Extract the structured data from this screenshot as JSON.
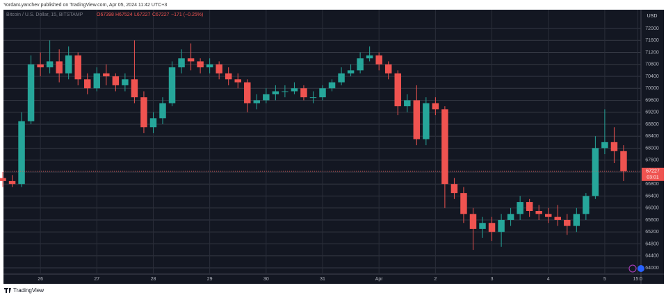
{
  "header": "YordanLyanchev published on TradingView.com, Apr 05, 2024 11:42 UTC+3",
  "footer": "TradingView",
  "chart_data": {
    "type": "candlestick",
    "legend": {
      "symbol": "Bitcoin / U.S. Dollar, 15, BITSTAMP",
      "open": "O67398",
      "high": "H67524",
      "low": "L67227",
      "close": "C67227",
      "change": "−171 (−0.25%)"
    },
    "currency": "USD",
    "last_price": 67227,
    "countdown": "03:01",
    "up_color": "#26a69a",
    "down_color": "#ef5350",
    "grid": true,
    "x": [
      8,
      12,
      16,
      20,
      24,
      28,
      32,
      36,
      40,
      44,
      48,
      52,
      56,
      60,
      64,
      68,
      72,
      76,
      80,
      84,
      88,
      92,
      96,
      100,
      104,
      108,
      112,
      116,
      120,
      124,
      128,
      132,
      136,
      140,
      144,
      148,
      152,
      156,
      160,
      164,
      168,
      172,
      176,
      180,
      184,
      188,
      192,
      196,
      200,
      204,
      208,
      212,
      216,
      220,
      224,
      228,
      232,
      236,
      240,
      244,
      248,
      252,
      256,
      260,
      264,
      268,
      272
    ],
    "open": [
      67000,
      66900,
      66800,
      68900,
      70800,
      70700,
      70900,
      70500,
      71100,
      70300,
      70000,
      70500,
      70400,
      70100,
      70300,
      69700,
      68700,
      69000,
      69500,
      70700,
      71000,
      70900,
      70700,
      70800,
      70500,
      70300,
      70200,
      69500,
      69600,
      69800,
      69900,
      69900,
      70000,
      69700,
      69700,
      70000,
      70200,
      70500,
      70600,
      71000,
      71100,
      70800,
      70500,
      69400,
      69600,
      68300,
      69500,
      69300,
      66800,
      66500,
      65800,
      65300,
      65500,
      65200,
      65600,
      65800,
      66200,
      65900,
      65800,
      65700,
      65600,
      65400,
      65800,
      66400,
      68000,
      68200,
      67900
    ],
    "high": [
      67200,
      67100,
      69200,
      71100,
      71200,
      71600,
      71300,
      71400,
      71200,
      70500,
      70700,
      70800,
      70500,
      70500,
      71600,
      69900,
      69200,
      69700,
      70900,
      71300,
      71500,
      71000,
      71000,
      70900,
      70700,
      70500,
      70300,
      69800,
      70000,
      70100,
      70100,
      70200,
      70100,
      69900,
      70100,
      70300,
      70700,
      70800,
      71200,
      71400,
      71200,
      70900,
      70600,
      69800,
      70100,
      69700,
      69700,
      69400,
      67000,
      66700,
      66000,
      65700,
      65700,
      65800,
      66000,
      66400,
      66300,
      66100,
      66000,
      66100,
      65800,
      66000,
      66500,
      68400,
      69300,
      68700,
      68100
    ],
    "low": [
      66700,
      66700,
      66700,
      68800,
      70400,
      70500,
      70200,
      70300,
      70100,
      69800,
      69900,
      70100,
      69900,
      69900,
      69500,
      68500,
      68500,
      68800,
      69400,
      70500,
      70600,
      70500,
      70500,
      70300,
      70100,
      70000,
      69200,
      69300,
      69500,
      69600,
      69700,
      69800,
      69600,
      69500,
      69600,
      69900,
      70100,
      70400,
      70500,
      70900,
      70600,
      70300,
      69100,
      69200,
      68100,
      68100,
      69100,
      66000,
      66300,
      65500,
      64600,
      65000,
      64900,
      64700,
      65400,
      65600,
      65700,
      65600,
      65500,
      65400,
      65100,
      65200,
      65600,
      66300,
      67800,
      67500,
      66900
    ],
    "close": [
      66900,
      66800,
      68900,
      70800,
      70700,
      70900,
      70500,
      71100,
      70300,
      70000,
      70500,
      70400,
      70100,
      70300,
      69700,
      68700,
      69000,
      69500,
      70700,
      71000,
      70900,
      70700,
      70800,
      70500,
      70300,
      70200,
      69500,
      69600,
      69800,
      69900,
      69900,
      70000,
      69700,
      69700,
      70000,
      70200,
      70500,
      70600,
      71000,
      71100,
      70800,
      70500,
      69400,
      69600,
      68300,
      69500,
      69300,
      66800,
      66500,
      65800,
      65300,
      65500,
      65200,
      65600,
      65800,
      66200,
      65900,
      65800,
      65700,
      65600,
      65400,
      65800,
      66400,
      68000,
      68200,
      67900,
      67227
    ],
    "xlim": [
      8.3,
      279.4
    ],
    "xticks": [
      {
        "value": 24,
        "label": "26"
      },
      {
        "value": 48,
        "label": "27"
      },
      {
        "value": 72,
        "label": "28"
      },
      {
        "value": 96,
        "label": "29"
      },
      {
        "value": 120,
        "label": "30"
      },
      {
        "value": 144,
        "label": "31"
      },
      {
        "value": 168,
        "label": "Apr"
      },
      {
        "value": 192,
        "label": "2"
      },
      {
        "value": 216,
        "label": "3"
      },
      {
        "value": 240,
        "label": "4"
      },
      {
        "value": 264,
        "label": "5"
      },
      {
        "value": 278,
        "label": "15:0"
      }
    ],
    "ylim": [
      63790,
      72626
    ],
    "yticks": [
      64000,
      64400,
      64800,
      65200,
      65600,
      66000,
      66400,
      66800,
      67200,
      67600,
      68000,
      68400,
      68800,
      69200,
      69600,
      70000,
      70400,
      70800,
      71200,
      71600,
      72000
    ]
  }
}
